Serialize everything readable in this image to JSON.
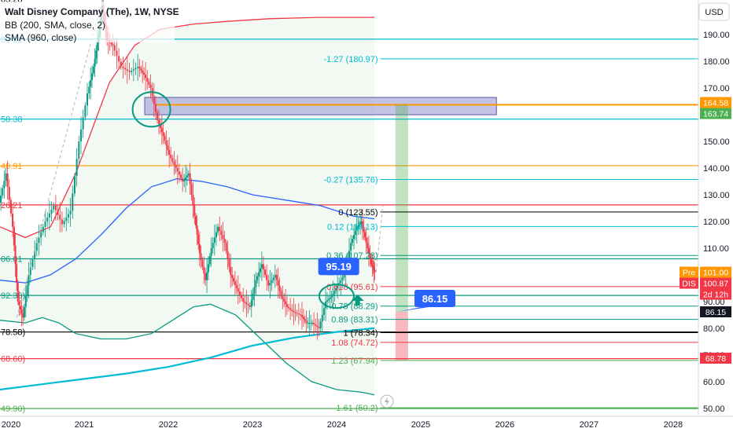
{
  "header": {
    "title": "Walt Disney Company (The), 1W, NYSE",
    "indicator_bb": "BB (200, SMA, close, 2)",
    "indicator_sma": "SMA (960, close)"
  },
  "currency_label": "USD",
  "chart_data": {
    "type": "line",
    "title": "Walt Disney Company (The), 1W, NYSE",
    "xlabel": "",
    "ylabel": "",
    "xlim": [
      2020.0,
      2028.3
    ],
    "ylim": [
      47,
      203
    ],
    "grid": false,
    "x_ticks": [
      "2020",
      "2021",
      "2022",
      "2023",
      "2024",
      "2025",
      "2026",
      "2027",
      "2028"
    ],
    "y_ticks": [
      "50.00",
      "60.00",
      "70.00",
      "80.00",
      "90.00",
      "110.00",
      "120.00",
      "130.00",
      "140.00",
      "150.00",
      "160.00",
      "170.00",
      "180.00",
      "190.00",
      "200.00"
    ],
    "price": {
      "name": "DIS weekly close",
      "points": [
        [
          2020.0,
          127
        ],
        [
          2020.08,
          138
        ],
        [
          2020.16,
          118
        ],
        [
          2020.22,
          90
        ],
        [
          2020.28,
          84
        ],
        [
          2020.35,
          100
        ],
        [
          2020.45,
          112
        ],
        [
          2020.55,
          120
        ],
        [
          2020.65,
          126
        ],
        [
          2020.75,
          119
        ],
        [
          2020.85,
          124
        ],
        [
          2020.95,
          150
        ],
        [
          2021.05,
          168
        ],
        [
          2021.12,
          178
        ],
        [
          2021.18,
          190
        ],
        [
          2021.22,
          201
        ],
        [
          2021.28,
          188
        ],
        [
          2021.35,
          186
        ],
        [
          2021.45,
          178
        ],
        [
          2021.55,
          176
        ],
        [
          2021.65,
          178
        ],
        [
          2021.72,
          175
        ],
        [
          2021.8,
          170
        ],
        [
          2021.88,
          158
        ],
        [
          2021.95,
          152
        ],
        [
          2022.02,
          145
        ],
        [
          2022.1,
          140
        ],
        [
          2022.18,
          135
        ],
        [
          2022.25,
          138
        ],
        [
          2022.32,
          122
        ],
        [
          2022.38,
          108
        ],
        [
          2022.45,
          98
        ],
        [
          2022.52,
          110
        ],
        [
          2022.6,
          118
        ],
        [
          2022.68,
          112
        ],
        [
          2022.75,
          100
        ],
        [
          2022.82,
          95
        ],
        [
          2022.9,
          90
        ],
        [
          2022.98,
          88
        ],
        [
          2023.05,
          98
        ],
        [
          2023.12,
          104
        ],
        [
          2023.2,
          96
        ],
        [
          2023.28,
          100
        ],
        [
          2023.35,
          92
        ],
        [
          2023.42,
          88
        ],
        [
          2023.5,
          86
        ],
        [
          2023.58,
          85
        ],
        [
          2023.65,
          82
        ],
        [
          2023.72,
          82
        ],
        [
          2023.8,
          80
        ],
        [
          2023.88,
          90
        ],
        [
          2023.95,
          92
        ],
        [
          2024.02,
          96
        ],
        [
          2024.1,
          100
        ],
        [
          2024.18,
          112
        ],
        [
          2024.25,
          118
        ],
        [
          2024.3,
          120
        ],
        [
          2024.36,
          112
        ],
        [
          2024.42,
          104
        ],
        [
          2024.46,
          101
        ]
      ]
    },
    "series": [
      {
        "name": "BB (200, SMA, close, 2)",
        "role": "upper",
        "points": [
          [
            2020.0,
            118
          ],
          [
            2020.3,
            114
          ],
          [
            2020.6,
            118
          ],
          [
            2020.9,
            138
          ],
          [
            2021.1,
            155
          ],
          [
            2021.3,
            172
          ],
          [
            2021.6,
            186
          ],
          [
            2021.9,
            192
          ],
          [
            2022.3,
            194
          ],
          [
            2022.7,
            195
          ],
          [
            2023.2,
            196
          ],
          [
            2023.8,
            196.5
          ],
          [
            2024.3,
            196.5
          ],
          [
            2024.45,
            196.5
          ]
        ]
      },
      {
        "name": "BB (200, SMA, close, 2)",
        "role": "basis",
        "points": [
          [
            2020.0,
            98
          ],
          [
            2020.3,
            97
          ],
          [
            2020.6,
            100
          ],
          [
            2020.9,
            106
          ],
          [
            2021.2,
            115
          ],
          [
            2021.5,
            125
          ],
          [
            2021.8,
            133
          ],
          [
            2022.1,
            136
          ],
          [
            2022.4,
            135
          ],
          [
            2022.7,
            133
          ],
          [
            2023.0,
            130
          ],
          [
            2023.4,
            128
          ],
          [
            2023.8,
            126
          ],
          [
            2024.2,
            122
          ],
          [
            2024.45,
            121
          ]
        ]
      },
      {
        "name": "BB (200, SMA, close, 2)",
        "role": "lower",
        "points": [
          [
            2020.0,
            83
          ],
          [
            2020.3,
            82
          ],
          [
            2020.5,
            84
          ],
          [
            2020.7,
            82
          ],
          [
            2020.9,
            78
          ],
          [
            2021.2,
            76
          ],
          [
            2021.5,
            76
          ],
          [
            2021.8,
            78
          ],
          [
            2022.1,
            84
          ],
          [
            2022.3,
            88
          ],
          [
            2022.5,
            89
          ],
          [
            2022.8,
            85
          ],
          [
            2023.1,
            76
          ],
          [
            2023.4,
            67
          ],
          [
            2023.7,
            60
          ],
          [
            2024.0,
            57
          ],
          [
            2024.3,
            56
          ],
          [
            2024.45,
            55
          ]
        ]
      },
      {
        "name": "SMA (960, close)",
        "role": "sma",
        "points": [
          [
            2020.0,
            57
          ],
          [
            2020.5,
            59
          ],
          [
            2021.0,
            61
          ],
          [
            2021.5,
            63
          ],
          [
            2022.0,
            65.5
          ],
          [
            2022.5,
            69
          ],
          [
            2023.0,
            73.5
          ],
          [
            2023.5,
            76.5
          ],
          [
            2024.0,
            78.6
          ],
          [
            2024.45,
            80
          ]
        ]
      }
    ],
    "horizontal_levels": [
      {
        "value": 203.28,
        "label": "03.28",
        "color": "#000000"
      },
      {
        "value": 188.31,
        "label": "88.31",
        "color": "#00bcd4"
      },
      {
        "value": 158.38,
        "label": "58.38",
        "color": "#00bcd4"
      },
      {
        "value": 140.91,
        "label": "40.91",
        "color": "#ff9800"
      },
      {
        "value": 126.21,
        "label": "26.21",
        "color": "#f23645"
      },
      {
        "value": 106.01,
        "label": "06.01",
        "color": "#089981"
      },
      {
        "value": 92.3,
        "label": "92.30)",
        "color": "#089981"
      },
      {
        "value": 78.58,
        "label": "78.58)",
        "color": "#000000"
      },
      {
        "value": 68.6,
        "label": "68.60)",
        "color": "#f23645"
      },
      {
        "value": 49.9,
        "label": "49.90)",
        "color": "#4caf50"
      }
    ],
    "fib_levels": [
      {
        "value": 180.97,
        "label": "-1.27 (180.97)",
        "color": "#00bcd4"
      },
      {
        "value": 135.76,
        "label": "-0.27 (135.76)",
        "color": "#00bcd4"
      },
      {
        "value": 123.55,
        "label": "0 (123.55)",
        "color": "#000000"
      },
      {
        "value": 118.13,
        "label": "0.12 (118.13)",
        "color": "#00bcd4"
      },
      {
        "value": 107.28,
        "label": "0.36 (107.28)",
        "color": "#089981"
      },
      {
        "value": 95.61,
        "label": "0.618 (95.61)",
        "color": "#f23645"
      },
      {
        "value": 88.29,
        "label": "0.78 (88.29)",
        "color": "#089981"
      },
      {
        "value": 83.31,
        "label": "0.89 (83.31)",
        "color": "#089981"
      },
      {
        "value": 78.34,
        "label": "1 (78.34)",
        "color": "#000000"
      },
      {
        "value": 74.72,
        "label": "1.08 (74.72)",
        "color": "#f23645"
      },
      {
        "value": 67.94,
        "label": "1.23 (67.94)",
        "color": "#4caf50"
      },
      {
        "value": 50.2,
        "label": "1.61 (50.2)",
        "color": "#4caf50"
      }
    ],
    "orange_level": {
      "value": 163.74,
      "color": "#ff9800"
    },
    "zone": {
      "x0": 2021.72,
      "x1": 2025.9,
      "y0": 160,
      "y1": 166.5,
      "color": "#9c9bd6"
    },
    "target_box": {
      "x0": 2024.7,
      "x1": 2024.85,
      "top": 163.74,
      "bottom": 67.94,
      "entry": 86.15,
      "profit_color": "#4caf50",
      "loss_color": "#f23645"
    },
    "callouts": [
      {
        "text": "95.19",
        "color": "#2962ff"
      },
      {
        "text": "86.15",
        "color": "#2962ff"
      }
    ],
    "price_tags": [
      {
        "value": 164.58,
        "text": "164.58",
        "color": "#ff9800"
      },
      {
        "value": 163.74,
        "text": "163.74",
        "color": "#4caf50"
      },
      {
        "value": 101.0,
        "text": "101.00",
        "prefix": "Pre",
        "color": "#ff9800"
      },
      {
        "value": 100.87,
        "text": "100.87",
        "prefix": "DIS",
        "color": "#f23645"
      },
      {
        "value": 97.0,
        "text": "2d 12h",
        "color": "#f23645"
      },
      {
        "value": 86.15,
        "text": "86.15",
        "color": "#131722"
      },
      {
        "value": 68.78,
        "text": "68.78",
        "color": "#f23645"
      }
    ]
  }
}
